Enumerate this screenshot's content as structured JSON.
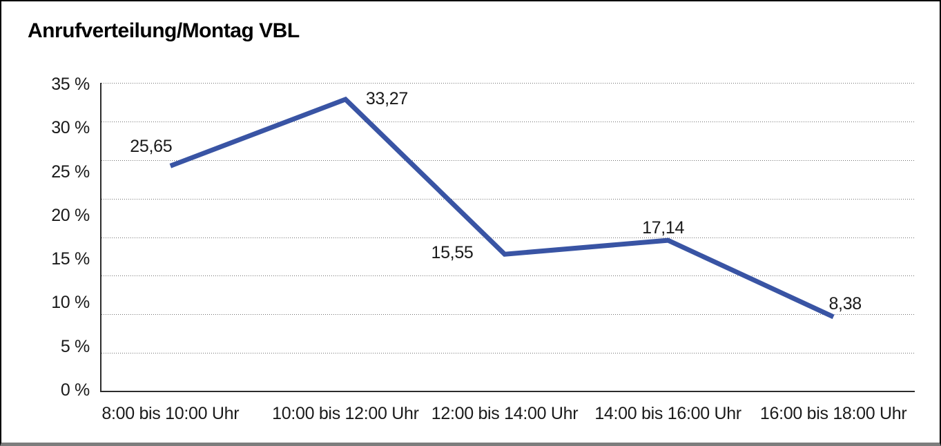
{
  "figure": {
    "title": "Anrufverteilung/Montag VBL"
  },
  "chart_data": {
    "type": "line",
    "title": "Anrufverteilung/Montag VBL",
    "categories": [
      "8:00 bis 10:00 Uhr",
      "10:00 bis 12:00 Uhr",
      "12:00 bis 14:00 Uhr",
      "14:00 bis 16:00 Uhr",
      "16:00 bis 18:00 Uhr"
    ],
    "values": [
      25.65,
      33.27,
      15.55,
      17.14,
      8.38
    ],
    "value_labels": [
      "25,65",
      "33,27",
      "15,55",
      "17,14",
      "8,38"
    ],
    "xlabel": "",
    "ylabel": "",
    "y_tick_labels": [
      "35 %",
      "30 %",
      "25 %",
      "20 %",
      "15 %",
      "10 %",
      "5 %",
      "0 %"
    ],
    "ylim": [
      0,
      35
    ],
    "y_step": 5,
    "grid": "horizontal-dotted",
    "legend": "none",
    "colors": {
      "line": "#3954A4",
      "text": "#1a1a1a",
      "grid": "#6f6f6f",
      "axis": "#2b2b2b",
      "background": "#ffffff",
      "border": "#000000",
      "bottom_edge": "#7d7d7d"
    }
  }
}
